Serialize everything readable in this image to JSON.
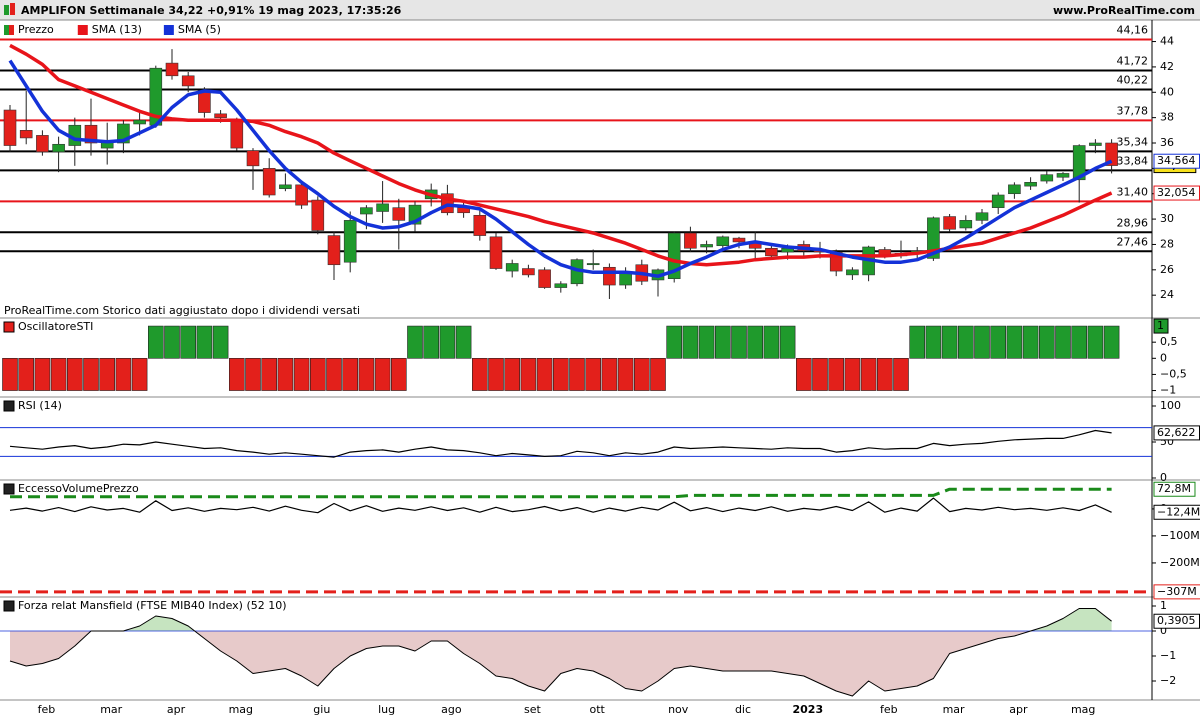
{
  "header": {
    "title": "AMPLIFON Settimanale 34,22 +0,91% 19 mag 2023, 17:35:26",
    "site": "www.ProRealTime.com"
  },
  "chart_data": [
    {
      "type": "candlestick",
      "name": "Prezzo",
      "note": "ProRealTime.com Storico dati aggiustato dopo i dividendi versati",
      "categories": [
        null,
        null,
        "feb",
        null,
        null,
        null,
        "mar",
        null,
        null,
        null,
        "apr",
        null,
        null,
        null,
        "mag",
        null,
        null,
        null,
        null,
        "giu",
        null,
        null,
        null,
        "lug",
        null,
        null,
        null,
        "ago",
        null,
        null,
        null,
        null,
        "set",
        null,
        null,
        null,
        "ott",
        null,
        null,
        null,
        null,
        "nov",
        null,
        null,
        null,
        "dic",
        null,
        null,
        null,
        "2023",
        null,
        null,
        null,
        null,
        "feb",
        null,
        null,
        null,
        "mar",
        null,
        null,
        null,
        "apr",
        null,
        null,
        null,
        "mag",
        null,
        null
      ],
      "open": [
        38.6,
        37.0,
        36.6,
        35.3,
        35.8,
        37.4,
        35.6,
        36.0,
        37.5,
        37.4,
        42.3,
        41.3,
        40.1,
        38.3,
        37.8,
        35.4,
        34.0,
        32.4,
        32.7,
        31.5,
        28.7,
        26.6,
        30.4,
        30.6,
        30.9,
        29.6,
        31.6,
        32.0,
        30.9,
        30.3,
        28.6,
        25.9,
        26.1,
        26.0,
        24.6,
        24.9,
        26.4,
        26.2,
        24.8,
        26.4,
        25.2,
        25.3,
        28.9,
        27.8,
        27.9,
        28.5,
        28.2,
        27.7,
        27.4,
        28.0,
        27.5,
        27.4,
        25.6,
        25.6,
        27.6,
        27.1,
        27.3,
        26.9,
        30.2,
        29.3,
        29.9,
        30.9,
        32.0,
        32.6,
        33.0,
        33.3,
        33.1,
        35.8,
        36.0
      ],
      "high": [
        39.0,
        40.1,
        37.0,
        36.5,
        38.0,
        39.5,
        37.6,
        37.8,
        38.4,
        42.1,
        43.4,
        41.6,
        40.4,
        38.6,
        38.0,
        35.6,
        34.8,
        33.6,
        33.0,
        31.8,
        29.0,
        30.6,
        31.1,
        33.0,
        31.6,
        31.4,
        32.8,
        32.7,
        31.4,
        30.8,
        28.9,
        26.8,
        26.4,
        26.2,
        25.1,
        26.9,
        27.6,
        26.5,
        26.2,
        26.8,
        26.1,
        29.0,
        29.4,
        28.3,
        28.7,
        28.6,
        29.0,
        28.0,
        28.0,
        28.3,
        28.2,
        27.6,
        26.2,
        27.9,
        27.8,
        28.3,
        27.8,
        30.2,
        30.4,
        30.3,
        30.8,
        32.1,
        32.9,
        33.3,
        33.8,
        33.7,
        35.9,
        36.3,
        36.3
      ],
      "low": [
        35.3,
        35.9,
        35.0,
        33.7,
        34.2,
        35.0,
        34.3,
        35.2,
        36.6,
        37.2,
        41.0,
        40.0,
        38.0,
        37.6,
        35.4,
        32.3,
        31.7,
        32.2,
        30.8,
        28.8,
        25.2,
        25.8,
        29.2,
        29.7,
        27.6,
        29.0,
        31.0,
        30.3,
        30.1,
        28.3,
        26.0,
        25.4,
        25.4,
        24.5,
        24.2,
        24.7,
        26.0,
        23.7,
        24.5,
        24.8,
        23.9,
        25.0,
        27.4,
        27.3,
        27.6,
        27.7,
        26.9,
        26.8,
        26.8,
        27.1,
        26.9,
        25.5,
        25.2,
        25.1,
        26.9,
        26.9,
        26.9,
        26.7,
        29.0,
        29.1,
        29.6,
        30.4,
        31.6,
        32.3,
        32.8,
        33.0,
        31.3,
        35.2,
        33.6
      ],
      "close": [
        35.8,
        36.4,
        35.3,
        35.9,
        37.4,
        36.0,
        36.2,
        37.5,
        37.8,
        41.9,
        41.3,
        40.5,
        38.4,
        38.0,
        35.6,
        34.2,
        31.9,
        32.7,
        31.1,
        29.1,
        26.4,
        29.9,
        30.9,
        31.2,
        29.9,
        31.1,
        32.3,
        30.5,
        30.5,
        28.7,
        26.1,
        26.5,
        25.6,
        24.6,
        24.9,
        26.8,
        26.5,
        24.8,
        25.8,
        25.1,
        26.0,
        28.9,
        27.7,
        28.0,
        28.6,
        28.2,
        27.7,
        27.1,
        27.7,
        27.5,
        27.4,
        25.9,
        26.0,
        27.8,
        27.1,
        27.3,
        27.5,
        30.1,
        29.2,
        29.9,
        30.5,
        31.9,
        32.7,
        32.9,
        33.5,
        33.6,
        35.8,
        36.0,
        34.22
      ],
      "last_label": "34,22",
      "up_color": "#1f9a2c",
      "down_color": "#e3201b",
      "series": [
        {
          "name": "SMA (13)",
          "color": "#e8141a",
          "last_label": "32,054",
          "values": [
            43.7,
            43.0,
            42.2,
            41.0,
            40.5,
            40.0,
            39.5,
            39.0,
            38.5,
            38.1,
            37.9,
            37.8,
            37.8,
            37.8,
            37.8,
            37.7,
            37.4,
            36.9,
            36.5,
            36.0,
            35.2,
            34.6,
            34.0,
            33.4,
            32.8,
            32.3,
            31.9,
            31.6,
            31.4,
            31.1,
            30.8,
            30.5,
            30.2,
            29.8,
            29.5,
            29.2,
            28.9,
            28.5,
            28.1,
            27.6,
            27.1,
            26.7,
            26.5,
            26.4,
            26.5,
            26.6,
            26.8,
            26.9,
            27.0,
            27.0,
            27.1,
            27.1,
            27.1,
            27.1,
            27.1,
            27.2,
            27.3,
            27.5,
            27.7,
            27.9,
            28.1,
            28.5,
            28.9,
            29.3,
            29.8,
            30.3,
            30.9,
            31.5,
            32.054
          ]
        },
        {
          "name": "SMA (5)",
          "color": "#1432d8",
          "last_label": "34,564",
          "values": [
            42.5,
            40.5,
            38.5,
            37.0,
            36.3,
            36.2,
            36.1,
            36.2,
            36.8,
            37.4,
            38.8,
            39.8,
            40.1,
            40.0,
            38.6,
            37.0,
            35.4,
            34.0,
            32.9,
            32.0,
            31.0,
            30.2,
            29.6,
            29.3,
            29.4,
            29.8,
            30.5,
            31.1,
            31.0,
            30.8,
            30.0,
            29.0,
            28.0,
            27.1,
            26.4,
            26.0,
            25.8,
            25.8,
            25.8,
            25.7,
            25.5,
            25.9,
            26.5,
            27.0,
            27.6,
            28.0,
            28.2,
            28.0,
            27.8,
            27.7,
            27.6,
            27.3,
            27.0,
            26.8,
            26.6,
            26.6,
            26.8,
            27.3,
            27.8,
            28.5,
            29.3,
            30.1,
            30.9,
            31.5,
            32.1,
            32.7,
            33.3,
            34.0,
            34.564
          ]
        }
      ],
      "levels": [
        {
          "value": 44.16,
          "label": "44,16",
          "color": "#e8141a"
        },
        {
          "value": 41.72,
          "label": "41,72",
          "color": "#000000"
        },
        {
          "value": 40.22,
          "label": "40,22",
          "color": "#000000"
        },
        {
          "value": 37.78,
          "label": "37,78",
          "color": "#e8141a"
        },
        {
          "value": 35.34,
          "label": "35,34",
          "color": "#000000"
        },
        {
          "value": 33.84,
          "label": "33,84",
          "color": "#000000"
        },
        {
          "value": 31.4,
          "label": "31,40",
          "color": "#e8141a"
        },
        {
          "value": 28.96,
          "label": "28,96",
          "color": "#000000"
        },
        {
          "value": 27.46,
          "label": "27,46",
          "color": "#000000"
        }
      ],
      "ylim": [
        22.2,
        45.7
      ],
      "yticks": [
        24,
        26,
        28,
        30,
        32,
        34,
        36,
        38,
        40,
        42,
        44
      ]
    },
    {
      "type": "bar",
      "title": "OscillatoreSTI",
      "up_color": "#1f9a2c",
      "down_color": "#e3201b",
      "values": [
        -1,
        -1,
        -1,
        -1,
        -1,
        -1,
        -1,
        -1,
        -1,
        1,
        1,
        1,
        1,
        1,
        -1,
        -1,
        -1,
        -1,
        -1,
        -1,
        -1,
        -1,
        -1,
        -1,
        -1,
        1,
        1,
        1,
        1,
        -1,
        -1,
        -1,
        -1,
        -1,
        -1,
        -1,
        -1,
        -1,
        -1,
        -1,
        -1,
        1,
        1,
        1,
        1,
        1,
        1,
        1,
        1,
        -1,
        -1,
        -1,
        -1,
        -1,
        -1,
        -1,
        1,
        1,
        1,
        1,
        1,
        1,
        1,
        1,
        1,
        1,
        1,
        1,
        1
      ],
      "ylim": [
        -1.2,
        1.25
      ],
      "yticks": [
        {
          "value": 0.5,
          "label": "0,5"
        },
        0,
        {
          "value": -0.5,
          "label": "−0,5"
        },
        {
          "value": -1,
          "label": "−1"
        }
      ]
    },
    {
      "type": "line",
      "title": "RSI (14)",
      "levels": [
        70,
        30
      ],
      "level_color": "#1432d8",
      "series": [
        {
          "color": "#000000",
          "last_label": "62,622",
          "values": [
            44,
            42,
            40,
            43,
            45,
            41,
            43,
            47,
            46,
            50,
            47,
            44,
            41,
            42,
            38,
            36,
            33,
            35,
            33,
            31,
            29,
            36,
            38,
            39,
            36,
            40,
            43,
            39,
            38,
            35,
            31,
            34,
            32,
            30,
            31,
            37,
            35,
            31,
            35,
            33,
            36,
            43,
            41,
            42,
            43,
            42,
            41,
            40,
            42,
            41,
            41,
            36,
            38,
            42,
            40,
            41,
            41,
            48,
            45,
            47,
            48,
            51,
            53,
            54,
            55,
            55,
            60,
            66,
            62.622
          ]
        }
      ],
      "ylim": [
        -2.8,
        112.5
      ],
      "yticks": [
        100,
        50,
        0
      ]
    },
    {
      "type": "line",
      "title": "EccessoVolumePrezzo",
      "series": [
        {
          "color": "#000000",
          "last_label": "−12,4M",
          "values": [
            -5000000,
            3000000,
            -8000000,
            5000000,
            -10000000,
            8000000,
            -4000000,
            2000000,
            -12000000,
            30000000,
            -6000000,
            4000000,
            -9000000,
            2000000,
            -3000000,
            6000000,
            -8000000,
            10000000,
            -5000000,
            -14000000,
            20000000,
            -7000000,
            12000000,
            -9000000,
            3000000,
            -5000000,
            8000000,
            -6000000,
            4000000,
            -12000000,
            6000000,
            -10000000,
            -3000000,
            9000000,
            -7000000,
            5000000,
            -12000000,
            3000000,
            -8000000,
            6000000,
            -4000000,
            25000000,
            -7000000,
            5000000,
            -10000000,
            3000000,
            -6000000,
            8000000,
            -9000000,
            2000000,
            -4000000,
            9000000,
            -6000000,
            26000000,
            -12000000,
            3000000,
            -8000000,
            40000000,
            -10000000,
            2000000,
            -4000000,
            6000000,
            -3000000,
            2000000,
            -5000000,
            4000000,
            -6000000,
            15000000,
            -12400000
          ]
        },
        {
          "color": "#1a8a1a",
          "dashed": true,
          "last_label": "72,8M",
          "values": [
            45000000,
            45000000,
            45000000,
            45000000,
            45000000,
            45000000,
            45000000,
            45000000,
            45000000,
            45000000,
            45000000,
            45000000,
            45000000,
            45000000,
            45000000,
            45000000,
            45000000,
            45000000,
            45000000,
            45000000,
            45000000,
            45000000,
            45000000,
            45000000,
            45000000,
            45000000,
            45000000,
            45000000,
            45000000,
            45000000,
            45000000,
            45000000,
            45000000,
            45000000,
            45000000,
            45000000,
            45000000,
            45000000,
            45000000,
            45000000,
            45000000,
            45000000,
            50000000,
            50000000,
            50000000,
            50000000,
            50000000,
            50000000,
            50000000,
            50000000,
            50000000,
            50000000,
            50000000,
            50000000,
            50000000,
            50000000,
            50000000,
            50000000,
            72800000,
            72800000,
            72800000,
            72800000,
            72800000,
            72800000,
            72800000,
            72800000,
            72800000,
            72800000,
            72800000
          ]
        }
      ],
      "levels": [
        {
          "value": -307000000,
          "label": "−307M",
          "color": "#e3201b"
        }
      ],
      "ylim": [
        -326000000,
        107000000
      ],
      "yticks": [
        0,
        {
          "value": -100000000,
          "label": "−100M"
        },
        {
          "value": -200000000,
          "label": "−200M"
        }
      ]
    },
    {
      "type": "area",
      "title": "Forza relat Mansfield (FTSE MIB40 Index) (52 10)",
      "pos_color": "#c6e4c0",
      "neg_color": "#e7caca",
      "last_label": "0,3905",
      "values": [
        -1.2,
        -1.4,
        -1.3,
        -1.1,
        -0.6,
        0,
        0,
        0,
        0.2,
        0.6,
        0.5,
        0.2,
        -0.3,
        -0.8,
        -1.2,
        -1.7,
        -1.6,
        -1.5,
        -1.8,
        -2.2,
        -1.5,
        -1.0,
        -0.7,
        -0.6,
        -0.6,
        -0.8,
        -0.4,
        -0.4,
        -0.9,
        -1.3,
        -1.8,
        -1.9,
        -2.2,
        -2.4,
        -1.7,
        -1.5,
        -1.6,
        -1.9,
        -2.3,
        -2.4,
        -2.0,
        -1.5,
        -1.4,
        -1.5,
        -1.6,
        -1.6,
        -1.6,
        -1.6,
        -1.7,
        -1.8,
        -2.1,
        -2.4,
        -2.6,
        -2.0,
        -2.4,
        -2.3,
        -2.2,
        -1.9,
        -0.9,
        -0.7,
        -0.5,
        -0.3,
        -0.2,
        0,
        0.2,
        0.5,
        0.9,
        0.9,
        0.3905
      ],
      "ylim": [
        -2.76,
        1.36
      ],
      "yticks": [
        1,
        0,
        {
          "value": -1,
          "label": "−1"
        },
        {
          "value": -2,
          "label": "−2"
        }
      ]
    }
  ]
}
